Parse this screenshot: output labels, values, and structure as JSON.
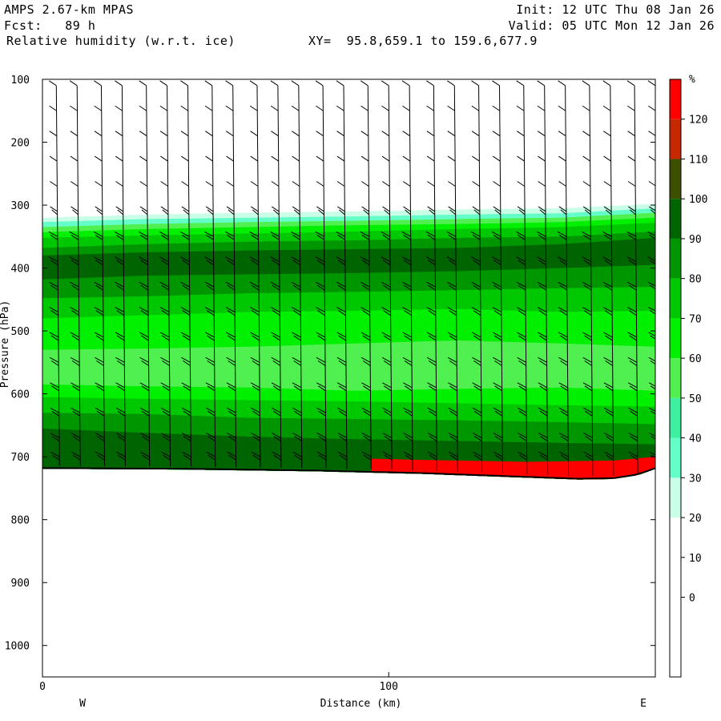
{
  "header": {
    "model": "AMPS 2.67-km MPAS",
    "fcst": "Fcst:   89 h",
    "field": "Relative humidity (w.r.t. ice)",
    "xy": "XY=  95.8,659.1 to 159.6,677.9",
    "init": "Init: 12 UTC Thu 08 Jan 26",
    "valid": "Valid: 05 UTC Mon 12 Jan 26"
  },
  "chart_data": {
    "type": "heatmap",
    "title": "Relative humidity (w.r.t. ice)",
    "xlabel": "Distance (km)",
    "ylabel": "Pressure (hPa)",
    "xlim": [
      0,
      177
    ],
    "ylim": [
      1050,
      100
    ],
    "x_ticks": [
      0,
      100
    ],
    "y_ticks": [
      100,
      200,
      300,
      400,
      500,
      600,
      700,
      800,
      900,
      1000
    ],
    "x_end_labels": {
      "left": "W",
      "right": "E"
    },
    "colorbar": {
      "unit": "%",
      "levels": [
        -10,
        0,
        10,
        20,
        30,
        40,
        50,
        60,
        70,
        80,
        90,
        100,
        110,
        120,
        130
      ],
      "labels": [
        0,
        10,
        20,
        30,
        40,
        50,
        60,
        70,
        80,
        90,
        100,
        110,
        120
      ],
      "colors": [
        "#ffffff",
        "#ffffff",
        "#ffffff",
        "#ffffff",
        "#c8ffe6",
        "#64ffc8",
        "#3cf0a0",
        "#50f050",
        "#00f000",
        "#00c800",
        "#009600",
        "#006400",
        "#3c5000",
        "#c82800",
        "#ff0000"
      ]
    },
    "terrain_pressure": [
      {
        "x": 0,
        "p": 718
      },
      {
        "x": 40,
        "p": 719
      },
      {
        "x": 80,
        "p": 722
      },
      {
        "x": 110,
        "p": 726
      },
      {
        "x": 140,
        "p": 732
      },
      {
        "x": 155,
        "p": 735
      },
      {
        "x": 165,
        "p": 734
      },
      {
        "x": 172,
        "p": 728
      },
      {
        "x": 177,
        "p": 718
      }
    ],
    "rh_layers": [
      {
        "rh": 30,
        "top": [
          320,
          315,
          312,
          310,
          307,
          305,
          298
        ]
      },
      {
        "rh": 40,
        "top": [
          327,
          322,
          320,
          318,
          315,
          313,
          305
        ]
      },
      {
        "rh": 60,
        "top": [
          335,
          330,
          327,
          325,
          322,
          320,
          312
        ]
      },
      {
        "rh": 70,
        "top": [
          343,
          338,
          335,
          332,
          330,
          327,
          320
        ]
      },
      {
        "rh": 80,
        "top": [
          352,
          348,
          345,
          342,
          338,
          335,
          328
        ]
      },
      {
        "rh": 90,
        "top": [
          368,
          362,
          358,
          356,
          352,
          350,
          342
        ]
      },
      {
        "rh": 100,
        "top": [
          380,
          375,
          372,
          370,
          368,
          362,
          352
        ]
      },
      {
        "rh": 90,
        "top": [
          418,
          412,
          410,
          408,
          405,
          400,
          395
        ]
      },
      {
        "rh": 80,
        "top": [
          448,
          445,
          440,
          438,
          435,
          432,
          430
        ]
      },
      {
        "rh": 70,
        "top": [
          480,
          475,
          470,
          468,
          465,
          470,
          468
        ]
      },
      {
        "rh": 60,
        "top": [
          530,
          528,
          525,
          520,
          515,
          520,
          525
        ]
      },
      {
        "rh": 70,
        "top": [
          585,
          588,
          590,
          595,
          592,
          590,
          595
        ]
      },
      {
        "rh": 80,
        "top": [
          605,
          608,
          610,
          612,
          615,
          618,
          620
        ]
      },
      {
        "rh": 90,
        "top": [
          630,
          632,
          638,
          640,
          642,
          645,
          648
        ]
      },
      {
        "rh": 100,
        "top": [
          655,
          662,
          668,
          672,
          675,
          678,
          680
        ]
      },
      {
        "rh": 100,
        "top": [
          690,
          692,
          695,
          698,
          700,
          702,
          705
        ]
      }
    ],
    "rh_layer_x": [
      0,
      30,
      60,
      90,
      120,
      150,
      177
    ],
    "saturated_near_surface": [
      {
        "x": 95,
        "p": 703,
        "rh": 120
      },
      {
        "x": 110,
        "p": 705,
        "rh": 130
      },
      {
        "x": 140,
        "p": 708,
        "rh": 130
      },
      {
        "x": 165,
        "p": 706,
        "rh": 130
      },
      {
        "x": 177,
        "p": 700,
        "rh": 120
      }
    ],
    "wind_barb_columns_x": [
      4,
      10,
      17,
      23,
      30,
      36,
      42,
      49,
      55,
      62,
      68,
      74,
      81,
      87,
      94,
      100,
      106,
      113,
      119,
      126,
      132,
      139,
      145,
      151,
      158,
      164,
      171,
      177
    ],
    "wind_barb_levels": [
      110,
      150,
      190,
      230,
      270,
      310,
      350,
      390,
      430,
      470,
      510,
      550,
      590,
      630,
      670,
      700
    ]
  }
}
